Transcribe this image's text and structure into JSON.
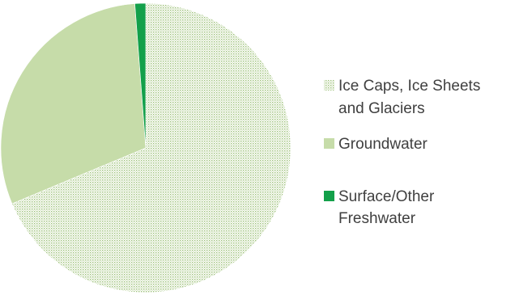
{
  "chart_data": {
    "type": "pie",
    "title": "",
    "slices": [
      {
        "label_lines": [
          "Ice Caps, Ice Sheets",
          "and Glaciers"
        ],
        "value": 68.7,
        "color": "#b9d49a",
        "pattern": "dotted",
        "legend_swatch": "dotted"
      },
      {
        "label_lines": [
          "Groundwater"
        ],
        "value": 30.1,
        "color": "#c6dca9",
        "pattern": "solid",
        "legend_swatch": "solid"
      },
      {
        "label_lines": [
          "Surface/Other",
          "Freshwater"
        ],
        "value": 1.2,
        "color": "#13a04a",
        "pattern": "solid",
        "legend_swatch": "solid"
      }
    ],
    "start_angle_deg": 0,
    "direction": "clockwise",
    "legend_position": "right"
  }
}
